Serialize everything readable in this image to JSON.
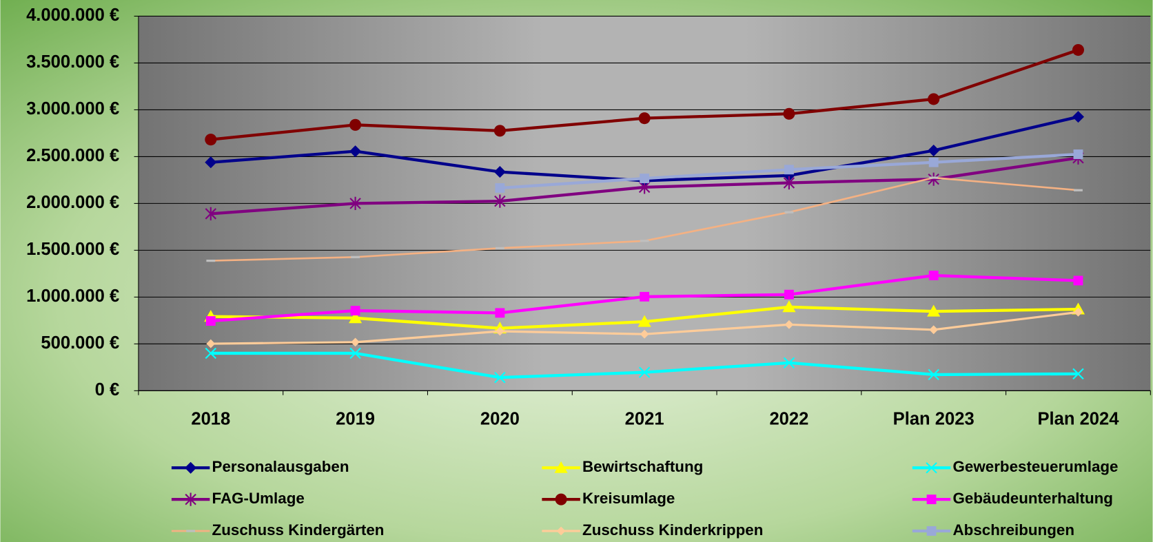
{
  "chart_data": {
    "type": "line",
    "categories": [
      "2018",
      "2019",
      "2020",
      "2021",
      "2022",
      "Plan 2023",
      "Plan 2024"
    ],
    "ylim": [
      0,
      4000000
    ],
    "yticks": [
      {
        "value": 0,
        "label": "0 €"
      },
      {
        "value": 500000,
        "label": "500.000 €"
      },
      {
        "value": 1000000,
        "label": "1.000.000 €"
      },
      {
        "value": 1500000,
        "label": "1.500.000 €"
      },
      {
        "value": 2000000,
        "label": "2.000.000 €"
      },
      {
        "value": 2500000,
        "label": "2.500.000 €"
      },
      {
        "value": 3000000,
        "label": "3.000.000 €"
      },
      {
        "value": 3500000,
        "label": "3.500.000 €"
      },
      {
        "value": 4000000,
        "label": "4.000.000 €"
      }
    ],
    "grid": true,
    "legend": "bottom",
    "series": [
      {
        "name": "Personalausgaben",
        "color": "#00008b",
        "marker": "diamond",
        "values": [
          2439000,
          2557000,
          2337000,
          2243000,
          2298000,
          2565000,
          2925000
        ]
      },
      {
        "name": "Bewirtschaftung",
        "color": "#ffff00",
        "marker": "triangle",
        "values": [
          792000,
          776000,
          667000,
          737000,
          894000,
          847000,
          870000
        ]
      },
      {
        "name": "Gewerbesteuerumlage",
        "color": "#00ffff",
        "marker": "x",
        "values": [
          400000,
          400000,
          141000,
          196000,
          298000,
          172000,
          180000
        ]
      },
      {
        "name": "FAG-Umlage",
        "color": "#800080",
        "marker": "star",
        "values": [
          1890000,
          2000000,
          2024000,
          2173000,
          2220000,
          2259000,
          2486000
        ]
      },
      {
        "name": "Kreisumlage",
        "color": "#800000",
        "marker": "circle",
        "values": [
          2682000,
          2839000,
          2776000,
          2910000,
          2957000,
          3114000,
          3639000
        ]
      },
      {
        "name": "Gebäudeunterhaltung",
        "color": "#ff00ff",
        "marker": "square",
        "values": [
          745000,
          855000,
          831000,
          1004000,
          1027000,
          1231000,
          1176000
        ]
      },
      {
        "name": "Zuschuss Kindergärten",
        "color": "#f4b183",
        "marker": "dash",
        "values": [
          1388000,
          1427000,
          1522000,
          1600000,
          1906000,
          2275000,
          2141000
        ]
      },
      {
        "name": "Zuschuss Kinderkrippen",
        "color": "#ffcc99",
        "marker": "smalldiamond",
        "values": [
          502000,
          518000,
          635000,
          604000,
          706000,
          651000,
          839000
        ]
      },
      {
        "name": "Abschreibungen",
        "color": "#99a8d8",
        "marker": "square",
        "values": [
          null,
          null,
          2165000,
          2267000,
          2361000,
          2439000,
          2525000
        ]
      }
    ]
  }
}
